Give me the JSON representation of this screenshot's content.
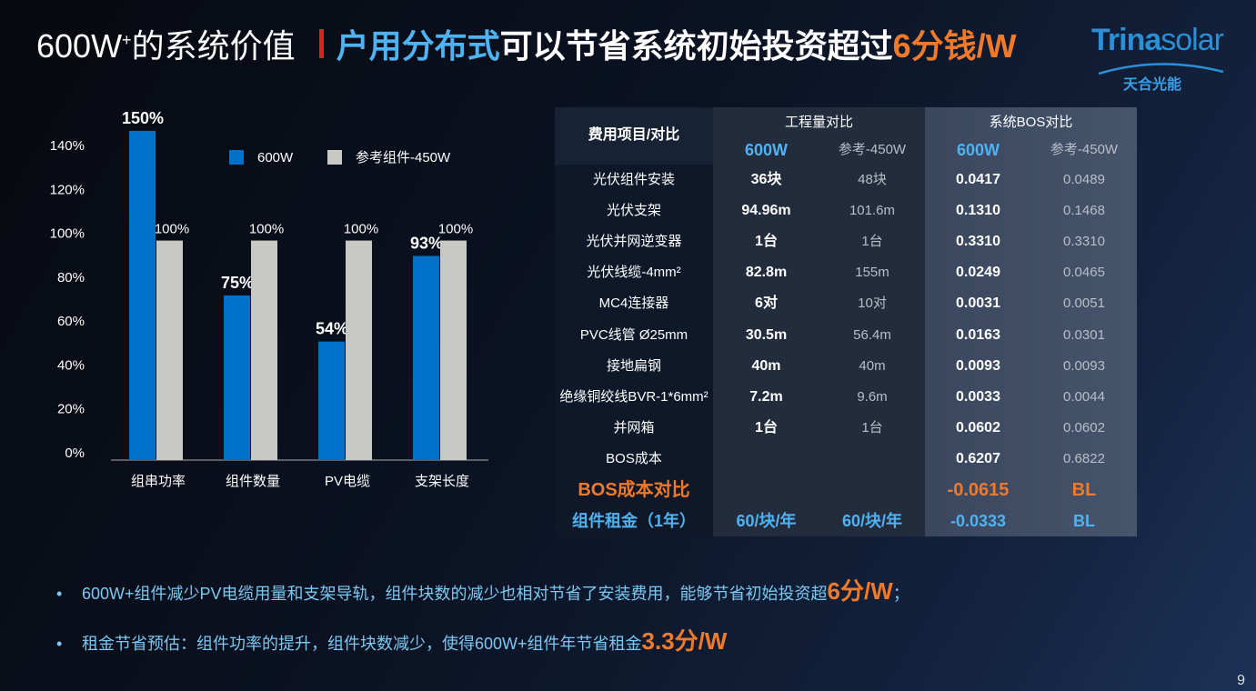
{
  "title": {
    "part1": "600W",
    "sup": "+",
    "part1b": "的系统价值",
    "part2": "户用分布式",
    "part3": "可以节省系统初始投资超过",
    "part4": "6分钱/W"
  },
  "logo": {
    "brand_a": "Trina",
    "brand_b": "solar",
    "cn": "天合光能"
  },
  "chart_data": {
    "type": "bar",
    "categories": [
      "组串功率",
      "组件数量",
      "PV电缆",
      "支架长度"
    ],
    "series": [
      {
        "name": "600W",
        "values": [
          150,
          75,
          54,
          93
        ],
        "labels": [
          "150%",
          "75%",
          "54%",
          "93%"
        ],
        "color": "#0070c8"
      },
      {
        "name": "参考组件-450W",
        "values": [
          100,
          100,
          100,
          100
        ],
        "labels": [
          "100%",
          "100%",
          "100%",
          "100%"
        ],
        "color": "#c8c8c4"
      }
    ],
    "yticks": [
      "0%",
      "20%",
      "40%",
      "60%",
      "80%",
      "100%",
      "120%",
      "140%"
    ],
    "ylim": [
      0,
      140
    ],
    "legend": "top-right",
    "grid": false
  },
  "table": {
    "corner": "费用项目/对比",
    "group1": "工程量对比",
    "group2": "系统BOS对比",
    "sub": [
      "600W",
      "参考-450W",
      "600W",
      "参考-450W"
    ],
    "rows": [
      [
        "光伏组件安装",
        "36块",
        "48块",
        "0.0417",
        "0.0489"
      ],
      [
        "光伏支架",
        "94.96m",
        "101.6m",
        "0.1310",
        "0.1468"
      ],
      [
        "光伏并网逆变器",
        "1台",
        "1台",
        "0.3310",
        "0.3310"
      ],
      [
        "光伏线缆-4mm²",
        "82.8m",
        "155m",
        "0.0249",
        "0.0465"
      ],
      [
        "MC4连接器",
        "6对",
        "10对",
        "0.0031",
        "0.0051"
      ],
      [
        "PVC线管 Ø25mm",
        "30.5m",
        "56.4m",
        "0.0163",
        "0.0301"
      ],
      [
        "接地扁钢",
        "40m",
        "40m",
        "0.0093",
        "0.0093"
      ],
      [
        "绝缘铜绞线BVR-1*6mm²",
        "7.2m",
        "9.6m",
        "0.0033",
        "0.0044"
      ],
      [
        "并网箱",
        "1台",
        "1台",
        "0.0602",
        "0.0602"
      ],
      [
        "BOS成本",
        "",
        "",
        "0.6207",
        "0.6822"
      ]
    ],
    "bos_compare": [
      "BOS成本对比",
      "",
      "",
      "-0.0615",
      "BL"
    ],
    "rent": [
      "组件租金（1年）",
      "60/块/年",
      "60/块/年",
      "-0.0333",
      "BL"
    ]
  },
  "bullets": [
    {
      "text": "600W+组件减少PV电缆用量和支架导轨，组件块数的减少也相对节省了安装费用，能够节省初始投资超",
      "em": "6分/W",
      "tail": "；"
    },
    {
      "text": "租金节省预估：组件功率的提升，组件块数减少，使得600W+组件年节省租金",
      "em": "3.3分/W",
      "tail": ""
    }
  ],
  "page_number": "9"
}
